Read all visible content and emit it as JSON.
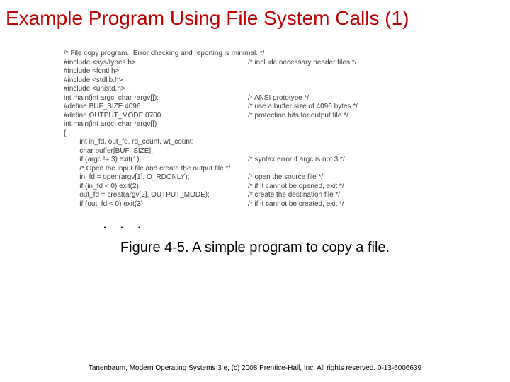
{
  "title": {
    "text": "Example Program Using File System Calls (1)",
    "color": "#c00000",
    "fontsize": 28
  },
  "code": {
    "fontsize": 10,
    "color": "#3c3c3c",
    "left_col_width": 260,
    "lines": [
      {
        "left": "/* File copy program.  Error checking and reporting is minimal. */",
        "right": ""
      },
      {
        "left": "",
        "right": ""
      },
      {
        "left": "#include <sys/types.h>",
        "right": "/* include necessary header files */"
      },
      {
        "left": "#include <fcntl.h>",
        "right": ""
      },
      {
        "left": "#include <stdlib.h>",
        "right": ""
      },
      {
        "left": "#include <unistd.h>",
        "right": ""
      },
      {
        "left": "",
        "right": ""
      },
      {
        "left": "int main(int argc, char *argv[]);",
        "right": "/* ANSI prototype */"
      },
      {
        "left": "",
        "right": ""
      },
      {
        "left": "#define BUF_SIZE 4096",
        "right": "/* use a buffer size of 4096 bytes */"
      },
      {
        "left": "#define OUTPUT_MODE 0700",
        "right": "/* protection bits for output file */"
      },
      {
        "left": "",
        "right": ""
      },
      {
        "left": "int main(int argc, char *argv[])",
        "right": ""
      },
      {
        "left": "{",
        "right": ""
      },
      {
        "left": "        int in_fd, out_fd, rd_count, wt_count;",
        "right": ""
      },
      {
        "left": "        char buffer[BUF_SIZE];",
        "right": ""
      },
      {
        "left": "",
        "right": ""
      },
      {
        "left": "        if (argc != 3) exit(1);",
        "right": "/* syntax error if argc is not 3 */"
      },
      {
        "left": "",
        "right": ""
      },
      {
        "left": "        /* Open the input file and create the output file */",
        "right": ""
      },
      {
        "left": "        in_fd = open(argv[1], O_RDONLY);",
        "right": "/* open the source file */"
      },
      {
        "left": "        if (in_fd < 0) exit(2);",
        "right": "/* if it cannot be opened, exit */"
      },
      {
        "left": "        out_fd = creat(argv[2], OUTPUT_MODE);",
        "right": "/* create the destination file */"
      },
      {
        "left": "        if (out_fd < 0) exit(3);",
        "right": "/* if it cannot be created, exit */"
      }
    ]
  },
  "ellipsis": {
    "text": ". . .",
    "fontsize": 22,
    "color": "#000000"
  },
  "caption": {
    "text": "Figure 4-5. A simple program to copy a file.",
    "fontsize": 20,
    "color": "#000000"
  },
  "footer": {
    "text": "Tanenbaum, Modern Operating Systems 3 e, (c) 2008 Prentice-Hall, Inc. All rights reserved. 0-13-6006639",
    "fontsize": 10,
    "color": "#000000"
  }
}
